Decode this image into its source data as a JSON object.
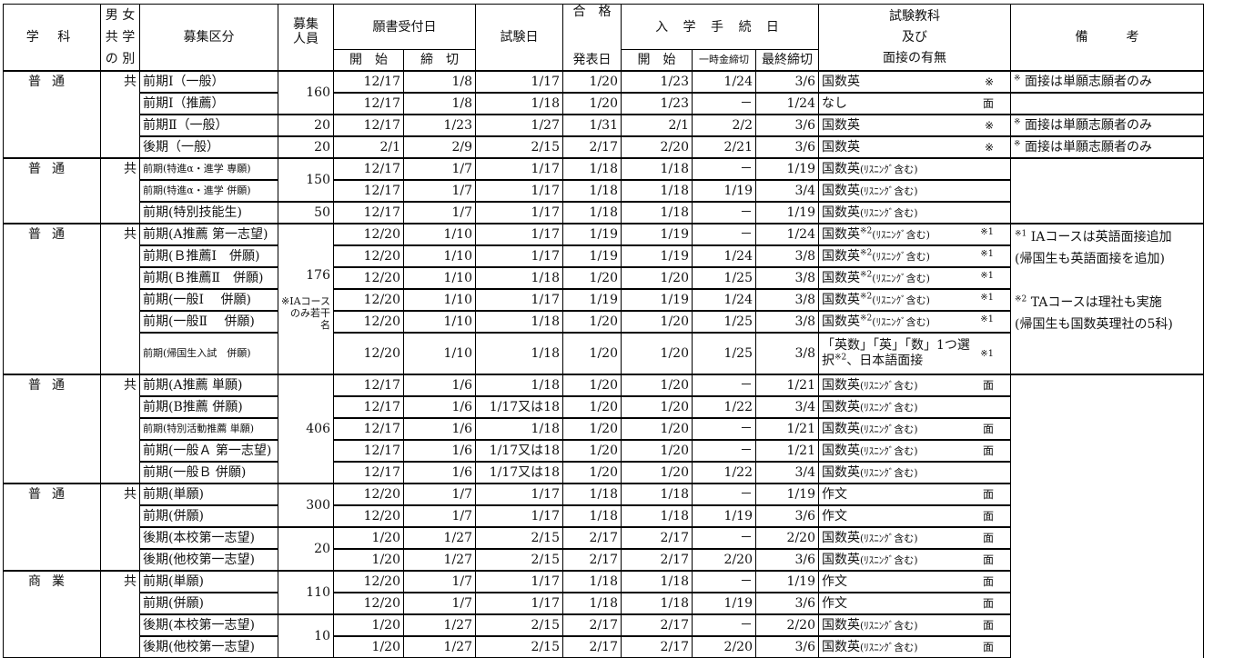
{
  "header": {
    "dept": "学 科",
    "coed": [
      "男 女",
      "共 学",
      "の 別"
    ],
    "category": "募集区分",
    "capacity": [
      "募集",
      "人員"
    ],
    "application": "願書受付日",
    "app_start": "開　始",
    "app_end": "締　切",
    "exam_date": "試験日",
    "result": [
      "合　格",
      "発表日"
    ],
    "enroll": "入 学 手 続 日",
    "enroll_start": "開　始",
    "enroll_deposit": "一時金締切",
    "enroll_final": "最終締切",
    "subjects": [
      "試験教科",
      "及び",
      "面接の有無"
    ],
    "remarks": "備　　　考"
  },
  "groups": [
    {
      "dept": "普通",
      "coed": "共",
      "capacity": [
        {
          "value": "160",
          "span": 2
        },
        {
          "value": "20",
          "span": 1
        },
        {
          "value": "20",
          "span": 1
        }
      ],
      "remarks_mode": "per-row",
      "remarks": [
        {
          "sup": "※",
          "text": "面接は単願志願者のみ"
        },
        {
          "sup": "",
          "text": ""
        },
        {
          "sup": "※",
          "text": "面接は単願志願者のみ"
        },
        {
          "sup": "※",
          "text": "面接は単願志願者のみ"
        }
      ],
      "rows": [
        {
          "category": "前期Ⅰ（一般）",
          "app_start": "12/17",
          "app_end": "1/8",
          "exam": "1/17",
          "result": "1/20",
          "en_start": "1/23",
          "deposit": "1/24",
          "final": "3/6",
          "subj": "国数英",
          "mark": "※"
        },
        {
          "category": "前期Ⅰ（推薦）",
          "app_start": "12/17",
          "app_end": "1/8",
          "exam": "1/18",
          "result": "1/20",
          "en_start": "1/23",
          "deposit": "－",
          "final": "1/24",
          "subj": "なし",
          "mark": "面"
        },
        {
          "category": "前期Ⅱ（一般）",
          "app_start": "12/17",
          "app_end": "1/23",
          "exam": "1/27",
          "result": "1/31",
          "en_start": "2/1",
          "deposit": "2/2",
          "final": "3/6",
          "subj": "国数英",
          "mark": "※"
        },
        {
          "category": "後期（一般）",
          "app_start": "2/1",
          "app_end": "2/9",
          "exam": "2/15",
          "result": "2/17",
          "en_start": "2/20",
          "deposit": "2/21",
          "final": "3/6",
          "subj": "国数英",
          "mark": "※"
        }
      ]
    },
    {
      "dept": "普通",
      "coed": "共",
      "capacity": [
        {
          "value": "150",
          "span": 2
        },
        {
          "value": "50",
          "span": 1
        }
      ],
      "remarks_mode": "merged",
      "remarks": [],
      "rows": [
        {
          "category": "前期(特進α・進学 専願)",
          "small": true,
          "app_start": "12/17",
          "app_end": "1/7",
          "exam": "1/17",
          "result": "1/18",
          "en_start": "1/18",
          "deposit": "－",
          "final": "1/19",
          "subj": "国数英",
          "kana": "(ﾘｽﾆﾝｸﾞ含む)",
          "mark": ""
        },
        {
          "category": "前期(特進α・進学 併願)",
          "small": true,
          "app_start": "12/17",
          "app_end": "1/7",
          "exam": "1/17",
          "result": "1/18",
          "en_start": "1/18",
          "deposit": "1/19",
          "final": "3/4",
          "subj": "国数英",
          "kana": "(ﾘｽﾆﾝｸﾞ含む)",
          "mark": ""
        },
        {
          "category": "前期(特別技能生)",
          "app_start": "12/17",
          "app_end": "1/7",
          "exam": "1/17",
          "result": "1/18",
          "en_start": "1/18",
          "deposit": "－",
          "final": "1/19",
          "subj": "国数英",
          "kana": "(ﾘｽﾆﾝｸﾞ含む)",
          "mark": ""
        }
      ]
    },
    {
      "dept": "普通",
      "coed": "共",
      "capacity": [
        {
          "value": "176",
          "span": 6,
          "note": "※IAコースのみ若干名"
        }
      ],
      "remarks_mode": "merged",
      "remarks": [
        {
          "sup": "※1",
          "text": "IAコースは英語面接追加"
        },
        {
          "sup": "",
          "text": "(帰国生も英語面接を追加)"
        },
        {
          "sup": "※2",
          "text": "TAコースは理社も実施"
        },
        {
          "sup": "",
          "text": "(帰国生も国数英理社の5科)"
        }
      ],
      "rows": [
        {
          "category": "前期(A推薦 第一志望)",
          "app_start": "12/20",
          "app_end": "1/10",
          "exam": "1/17",
          "result": "1/19",
          "en_start": "1/19",
          "deposit": "－",
          "final": "1/24",
          "subj": "国数英",
          "sup": "※2",
          "kana": "(ﾘｽﾆﾝｸﾞ含む)",
          "mark": "※1"
        },
        {
          "category": "前期(Ｂ推薦Ⅰ　併願)",
          "app_start": "12/20",
          "app_end": "1/10",
          "exam": "1/17",
          "result": "1/19",
          "en_start": "1/19",
          "deposit": "1/24",
          "final": "3/8",
          "subj": "国数英",
          "sup": "※2",
          "kana": "(ﾘｽﾆﾝｸﾞ含む)",
          "mark": "※1"
        },
        {
          "category": "前期(Ｂ推薦Ⅱ　併願)",
          "app_start": "12/20",
          "app_end": "1/10",
          "exam": "1/18",
          "result": "1/20",
          "en_start": "1/20",
          "deposit": "1/25",
          "final": "3/8",
          "subj": "国数英",
          "sup": "※2",
          "kana": "(ﾘｽﾆﾝｸﾞ含む)",
          "mark": "※1"
        },
        {
          "category": "前期(一般Ⅰ　 併願)",
          "app_start": "12/20",
          "app_end": "1/10",
          "exam": "1/17",
          "result": "1/19",
          "en_start": "1/19",
          "deposit": "1/24",
          "final": "3/8",
          "subj": "国数英",
          "sup": "※2",
          "kana": "(ﾘｽﾆﾝｸﾞ含む)",
          "mark": "※1"
        },
        {
          "category": "前期(一般Ⅱ　 併願)",
          "app_start": "12/20",
          "app_end": "1/10",
          "exam": "1/18",
          "result": "1/20",
          "en_start": "1/20",
          "deposit": "1/25",
          "final": "3/8",
          "subj": "国数英",
          "sup": "※2",
          "kana": "(ﾘｽﾆﾝｸﾞ含む)",
          "mark": "※1"
        },
        {
          "category": "前期(帰国生入試　併願)",
          "small": true,
          "tall": true,
          "app_start": "12/20",
          "app_end": "1/10",
          "exam": "1/18",
          "result": "1/20",
          "en_start": "1/20",
          "deposit": "1/25",
          "final": "3/8",
          "subj": "「英数」「英」「数」1つ選択",
          "sup": "※2",
          "after": "、日本語面接",
          "mark": "※1"
        }
      ]
    },
    {
      "dept": "普通",
      "coed": "共",
      "capacity": [
        {
          "value": "406",
          "span": 5
        }
      ],
      "remarks_mode": "merged",
      "remarks": [],
      "rows": [
        {
          "category": "前期(A推薦 単願)",
          "app_start": "12/17",
          "app_end": "1/6",
          "exam": "1/18",
          "result": "1/20",
          "en_start": "1/20",
          "deposit": "－",
          "final": "1/21",
          "subj": "国数英",
          "kana": "(ﾘｽﾆﾝｸﾞ含む)",
          "mark": "面"
        },
        {
          "category": "前期(B推薦 併願)",
          "app_start": "12/17",
          "app_end": "1/6",
          "exam": "1/17又は18",
          "result": "1/20",
          "en_start": "1/20",
          "deposit": "1/22",
          "final": "3/4",
          "subj": "国数英",
          "kana": "(ﾘｽﾆﾝｸﾞ含む)",
          "mark": ""
        },
        {
          "category": "前期(特別活動推薦 単願)",
          "small": true,
          "app_start": "12/17",
          "app_end": "1/6",
          "exam": "1/18",
          "result": "1/20",
          "en_start": "1/20",
          "deposit": "－",
          "final": "1/21",
          "subj": "国数英",
          "kana": "(ﾘｽﾆﾝｸﾞ含む)",
          "mark": "面"
        },
        {
          "category": "前期(一般Ａ 第一志望)",
          "app_start": "12/17",
          "app_end": "1/6",
          "exam": "1/17又は18",
          "result": "1/20",
          "en_start": "1/20",
          "deposit": "－",
          "final": "1/21",
          "subj": "国数英",
          "kana": "(ﾘｽﾆﾝｸﾞ含む)",
          "mark": "面"
        },
        {
          "category": "前期(一般Ｂ 併願)",
          "app_start": "12/17",
          "app_end": "1/6",
          "exam": "1/17又は18",
          "result": "1/20",
          "en_start": "1/20",
          "deposit": "1/22",
          "final": "3/4",
          "subj": "国数英",
          "kana": "(ﾘｽﾆﾝｸﾞ含む)",
          "mark": ""
        }
      ]
    },
    {
      "dept": "普通",
      "coed": "共",
      "capacity": [
        {
          "value": "300",
          "span": 2
        },
        {
          "value": "20",
          "span": 2
        }
      ],
      "remarks_mode": "merged",
      "remarks": [],
      "rows": [
        {
          "category": "前期(単願)",
          "app_start": "12/20",
          "app_end": "1/7",
          "exam": "1/17",
          "result": "1/18",
          "en_start": "1/18",
          "deposit": "－",
          "final": "1/19",
          "subj": "作文",
          "mark": "面"
        },
        {
          "category": "前期(併願)",
          "app_start": "12/20",
          "app_end": "1/7",
          "exam": "1/17",
          "result": "1/18",
          "en_start": "1/18",
          "deposit": "1/19",
          "final": "3/6",
          "subj": "作文",
          "mark": "面"
        },
        {
          "category": "後期(本校第一志望)",
          "app_start": "1/20",
          "app_end": "1/27",
          "exam": "2/15",
          "result": "2/17",
          "en_start": "2/17",
          "deposit": "－",
          "final": "2/20",
          "subj": "国数英",
          "kana": "(ﾘｽﾆﾝｸﾞ含む)",
          "mark": "面"
        },
        {
          "category": "後期(他校第一志望)",
          "app_start": "1/20",
          "app_end": "1/27",
          "exam": "2/15",
          "result": "2/17",
          "en_start": "2/17",
          "deposit": "2/20",
          "final": "3/6",
          "subj": "国数英",
          "kana": "(ﾘｽﾆﾝｸﾞ含む)",
          "mark": "面"
        }
      ]
    },
    {
      "dept": "商業",
      "coed": "共",
      "capacity": [
        {
          "value": "110",
          "span": 2
        },
        {
          "value": "10",
          "span": 2
        }
      ],
      "remarks_mode": "merged",
      "remarks": [],
      "rows": [
        {
          "category": "前期(単願)",
          "app_start": "12/20",
          "app_end": "1/7",
          "exam": "1/17",
          "result": "1/18",
          "en_start": "1/18",
          "deposit": "－",
          "final": "1/19",
          "subj": "作文",
          "mark": "面"
        },
        {
          "category": "前期(併願)",
          "app_start": "12/20",
          "app_end": "1/7",
          "exam": "1/17",
          "result": "1/18",
          "en_start": "1/18",
          "deposit": "1/19",
          "final": "3/6",
          "subj": "作文",
          "mark": "面"
        },
        {
          "category": "後期(本校第一志望)",
          "app_start": "1/20",
          "app_end": "1/27",
          "exam": "2/15",
          "result": "2/17",
          "en_start": "2/17",
          "deposit": "－",
          "final": "2/20",
          "subj": "国数英",
          "kana": "(ﾘｽﾆﾝｸﾞ含む)",
          "mark": "面"
        },
        {
          "category": "後期(他校第一志望)",
          "app_start": "1/20",
          "app_end": "1/27",
          "exam": "2/15",
          "result": "2/17",
          "en_start": "2/17",
          "deposit": "2/20",
          "final": "3/6",
          "subj": "国数英",
          "kana": "(ﾘｽﾆﾝｸﾞ含む)",
          "mark": "面"
        }
      ]
    }
  ]
}
